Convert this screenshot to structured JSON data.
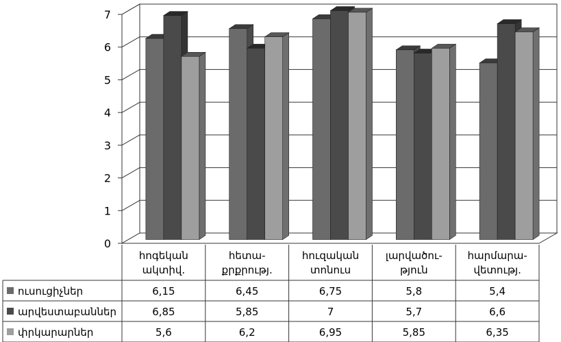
{
  "chart_data": {
    "type": "bar",
    "variant": "3d-clustered-column-with-data-table",
    "categories": [
      [
        "հոգեկան",
        "ակտիվ."
      ],
      [
        "հետա-",
        "քրքրությ."
      ],
      [
        "հուզական",
        "տոնուս"
      ],
      [
        "լարվածու-",
        "թյուն"
      ],
      [
        "հարմարա-",
        "վետությ."
      ]
    ],
    "series": [
      {
        "name": "ուսուցիչներ",
        "values": [
          6.15,
          6.45,
          6.75,
          5.8,
          5.4
        ],
        "labels": [
          "6,15",
          "6,45",
          "6,75",
          "5,8",
          "5,4"
        ],
        "color": "#6b6b6b"
      },
      {
        "name": "արվեստաբաններ",
        "values": [
          6.85,
          5.85,
          7,
          5.7,
          6.6
        ],
        "labels": [
          "6,85",
          "5,85",
          "7",
          "5,7",
          "6,6"
        ],
        "color": "#4a4a4a"
      },
      {
        "name": "փրկարարներ",
        "values": [
          5.6,
          6.2,
          6.95,
          5.85,
          6.35
        ],
        "labels": [
          "5,6",
          "6,2",
          "6,95",
          "5,85",
          "6,35"
        ],
        "color": "#9e9e9e"
      }
    ],
    "y_ticks": [
      "0",
      "1",
      "2",
      "3",
      "4",
      "5",
      "6",
      "7"
    ],
    "ylim": [
      0,
      7
    ],
    "grid": true,
    "legend": "data-table-left"
  }
}
